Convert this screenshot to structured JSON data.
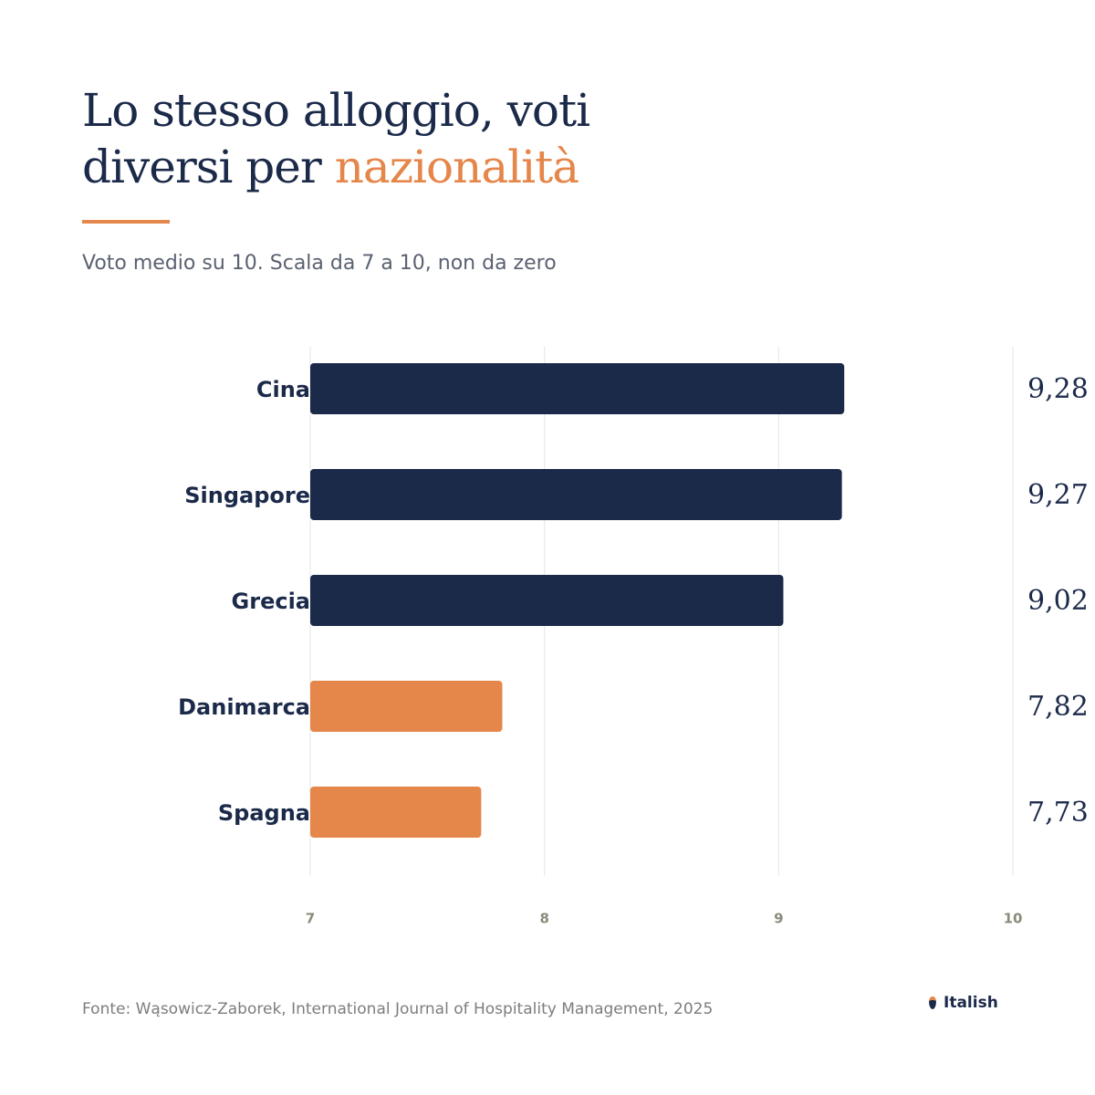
{
  "chart_data": {
    "type": "bar",
    "orientation": "horizontal",
    "title": "Lo stesso alloggio, voti diversi per",
    "title_highlight": "nazionalità",
    "subtitle": "Voto medio su 10. Scala da 7 a 10, non da zero",
    "categories": [
      "Cina",
      "Singapore",
      "Grecia",
      "Danimarca",
      "Spagna"
    ],
    "values": [
      9.28,
      9.27,
      9.02,
      7.82,
      7.73
    ],
    "value_labels": [
      "9,28",
      "9,27",
      "9,02",
      "7,82",
      "7,73"
    ],
    "colors": [
      "#1c2a4a",
      "#1c2a4a",
      "#1c2a4a",
      "#e5864a",
      "#e5864a"
    ],
    "xlim": [
      7,
      10
    ],
    "xticks": [
      7,
      8,
      9,
      10
    ],
    "grid": true,
    "source": "Fonte: Wąsowicz-Zaborek, International Journal of Hospitality Management, 2025",
    "brand": "Italish"
  }
}
